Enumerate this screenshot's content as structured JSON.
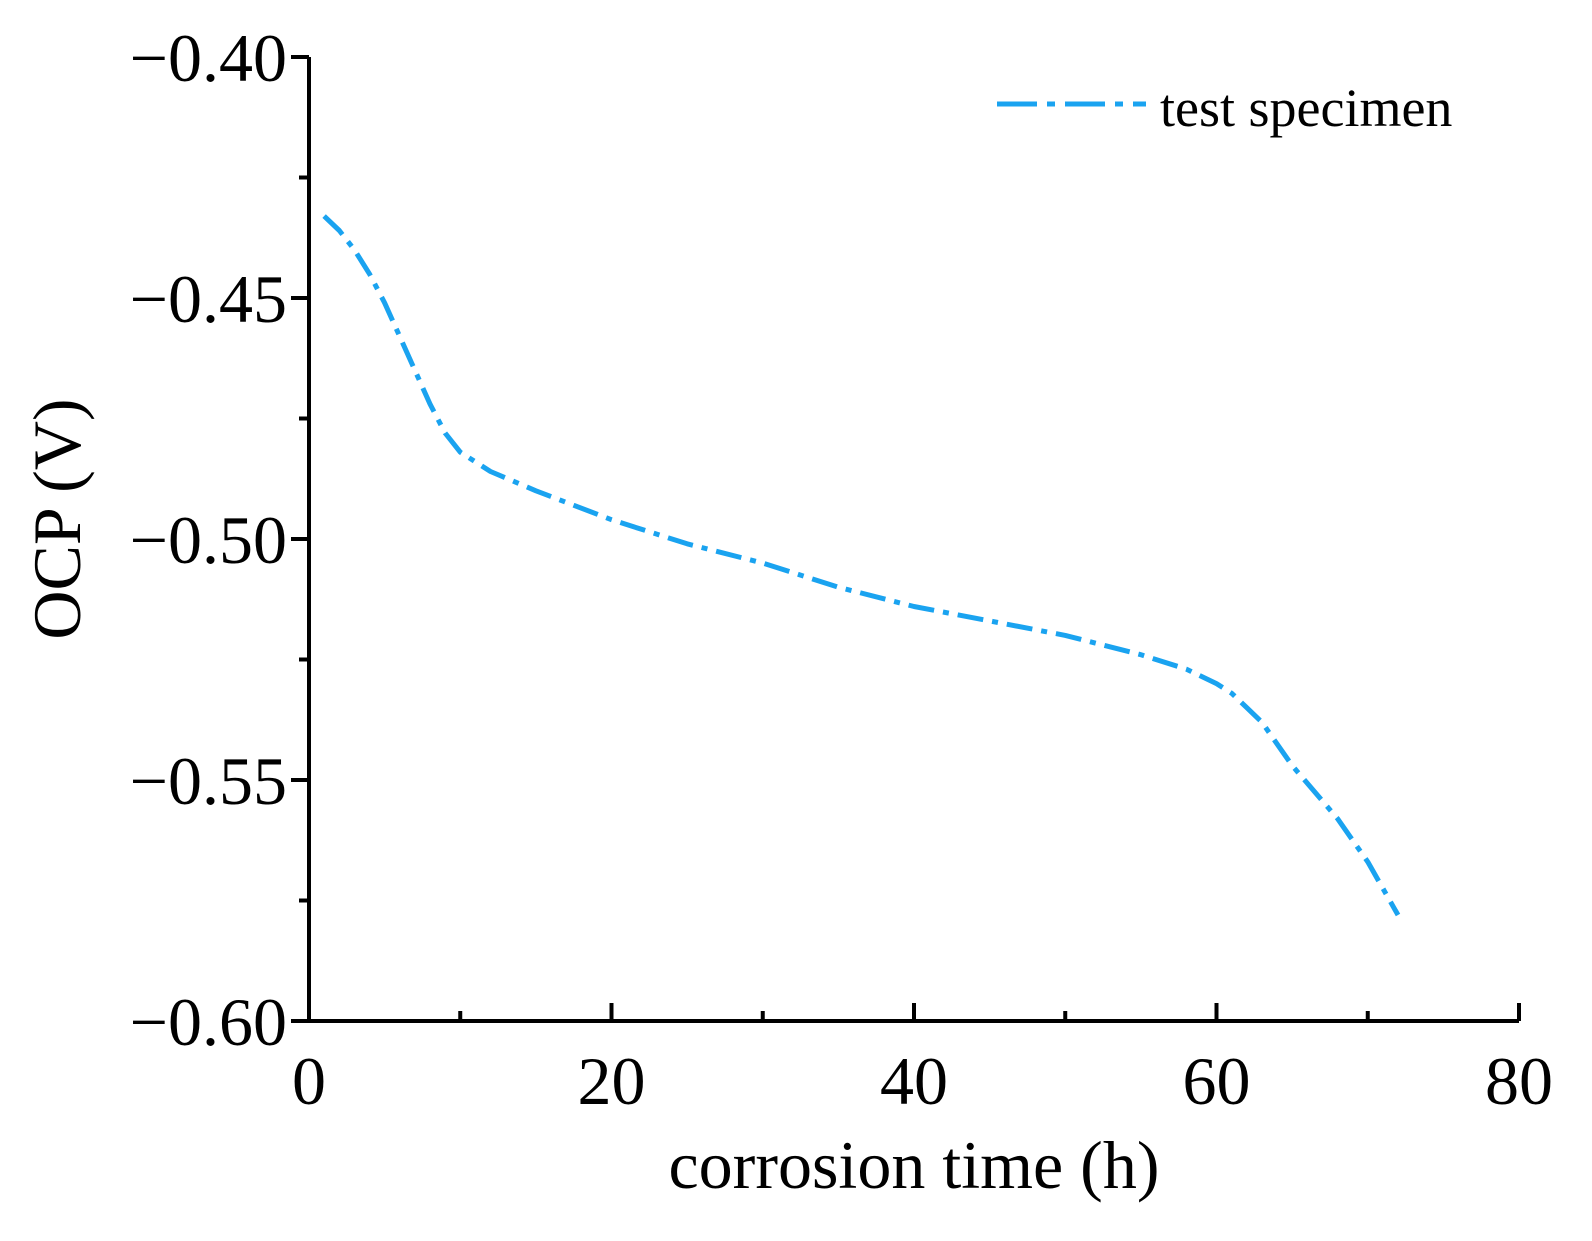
{
  "colors": {
    "series": "#1aa3f0",
    "axis": "#000000"
  },
  "chart_data": {
    "type": "line",
    "title": "",
    "xlabel": "corrosion time (h)",
    "ylabel": "OCP (V)",
    "xlim": [
      0,
      80
    ],
    "ylim": [
      -0.6,
      -0.4
    ],
    "x_ticks": [
      0,
      20,
      40,
      60,
      80
    ],
    "x_tick_labels": [
      "0",
      "20",
      "40",
      "60",
      "80"
    ],
    "x_minor_ticks": [
      10,
      30,
      50,
      70
    ],
    "y_ticks": [
      -0.4,
      -0.45,
      -0.5,
      -0.55,
      -0.6
    ],
    "y_tick_labels": [
      "−0.40",
      "−0.45",
      "−0.50",
      "−0.55",
      "−0.60"
    ],
    "y_minor_ticks": [
      -0.425,
      -0.475,
      -0.525,
      -0.575
    ],
    "grid": false,
    "legend": {
      "position": "top-right",
      "entries": [
        "test specimen"
      ]
    },
    "series": [
      {
        "name": "test specimen",
        "line_style": "dash-dot",
        "x": [
          1,
          2,
          3,
          4,
          5,
          6,
          7,
          8,
          9,
          10,
          12,
          15,
          20,
          25,
          30,
          35,
          40,
          45,
          50,
          55,
          58,
          60,
          61,
          62,
          63,
          65,
          68,
          70,
          72
        ],
        "y": [
          -0.433,
          -0.436,
          -0.44,
          -0.445,
          -0.451,
          -0.458,
          -0.465,
          -0.472,
          -0.478,
          -0.482,
          -0.486,
          -0.49,
          -0.496,
          -0.501,
          -0.505,
          -0.51,
          -0.514,
          -0.517,
          -0.52,
          -0.524,
          -0.527,
          -0.53,
          -0.532,
          -0.535,
          -0.538,
          -0.547,
          -0.558,
          -0.567,
          -0.578
        ]
      }
    ]
  }
}
